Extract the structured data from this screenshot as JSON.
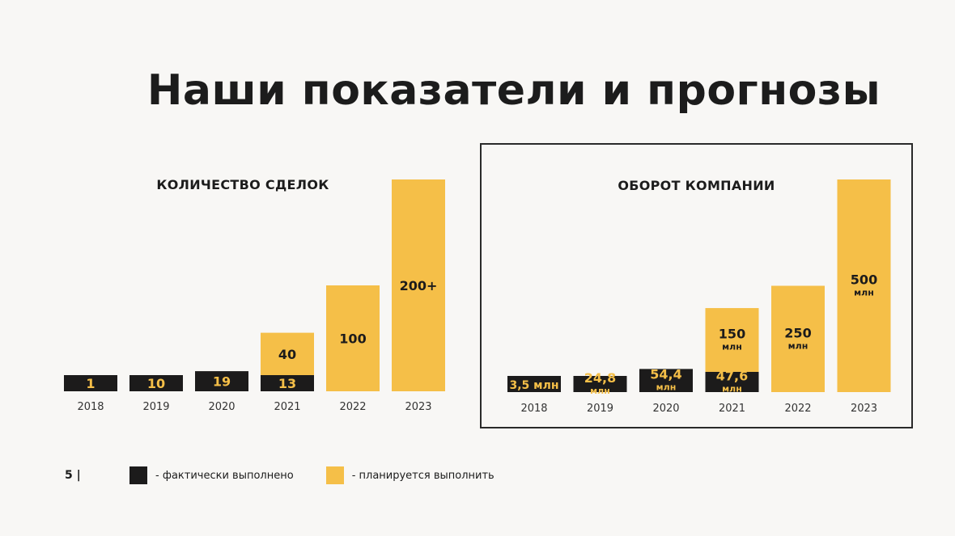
{
  "page": {
    "title": "Наши показатели и прогнозы",
    "page_number": "5 |"
  },
  "colors": {
    "actual": "#1c1b1b",
    "planned": "#f5bf48",
    "background": "#f8f7f5"
  },
  "legend": [
    {
      "key": "actual",
      "label": "- фактически выполнено"
    },
    {
      "key": "planned",
      "label": "- планируется выполнить"
    }
  ],
  "chart_data": [
    {
      "type": "bar",
      "stacked": true,
      "title": "КОЛИЧЕСТВО СДЕЛОК",
      "categories": [
        "2018",
        "2019",
        "2020",
        "2021",
        "2022",
        "2023"
      ],
      "ylim": [
        0,
        200
      ],
      "series": [
        {
          "key": "actual",
          "values": [
            1,
            10,
            19,
            13,
            0,
            0
          ]
        },
        {
          "key": "planned",
          "values": [
            0,
            0,
            0,
            40,
            100,
            200
          ]
        }
      ],
      "labels": [
        [
          "1",
          null
        ],
        [
          "10",
          null
        ],
        [
          "19",
          null
        ],
        [
          "13",
          "40"
        ],
        [
          null,
          "100"
        ],
        [
          null,
          "200+"
        ]
      ]
    },
    {
      "type": "bar",
      "stacked": true,
      "title": "ОБОРОТ КОМПАНИИ",
      "categories": [
        "2018",
        "2019",
        "2020",
        "2021",
        "2022",
        "2023"
      ],
      "ylim": [
        0,
        500
      ],
      "series": [
        {
          "key": "actual",
          "values": [
            3.5,
            24.8,
            54.4,
            47.6,
            0,
            0
          ]
        },
        {
          "key": "planned",
          "values": [
            0,
            0,
            0,
            150,
            250,
            500
          ]
        }
      ],
      "labels": [
        [
          "3,5 млн",
          null
        ],
        [
          "24,8|млн",
          null
        ],
        [
          "54,4|млн",
          null
        ],
        [
          "47,6|млн",
          "150|млн"
        ],
        [
          null,
          "250|млн"
        ],
        [
          null,
          "500|млн"
        ]
      ]
    }
  ]
}
